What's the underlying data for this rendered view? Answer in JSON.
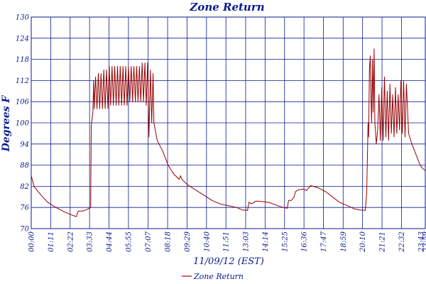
{
  "chart_data": {
    "type": "line",
    "title": "Zone Return",
    "xlabel": "11/09/12 (EST)",
    "ylabel": "Degrees F",
    "ylim": [
      70,
      130
    ],
    "yticks": [
      70,
      76,
      82,
      88,
      94,
      100,
      106,
      112,
      118,
      124,
      130
    ],
    "x_tick_labels": [
      "00:00",
      "01:11",
      "02:22",
      "03:33",
      "04:44",
      "05:55",
      "07:07",
      "08:18",
      "09:29",
      "10:40",
      "11:51",
      "13:03",
      "14:14",
      "15:25",
      "16:36",
      "17:47",
      "18:59",
      "20:10",
      "21:21",
      "22:32",
      "23:43",
      "23:59"
    ],
    "grid": true,
    "legend_position": "bottom-left",
    "series": [
      {
        "name": "Zone Return",
        "color": "#990000",
        "points": [
          [
            "00:00",
            85
          ],
          [
            "00:10",
            82
          ],
          [
            "00:30",
            80
          ],
          [
            "01:00",
            77.5
          ],
          [
            "01:30",
            76
          ],
          [
            "02:00",
            74.8
          ],
          [
            "02:30",
            73.8
          ],
          [
            "02:45",
            73.4
          ],
          [
            "02:50",
            74.8
          ],
          [
            "02:55",
            75
          ],
          [
            "03:10",
            75
          ],
          [
            "03:25",
            75.5
          ],
          [
            "03:37",
            76
          ],
          [
            "03:39",
            99
          ],
          [
            "03:45",
            103
          ],
          [
            "03:48",
            112
          ],
          [
            "03:50",
            104
          ],
          [
            "03:55",
            113
          ],
          [
            "04:00",
            104
          ],
          [
            "04:05",
            114
          ],
          [
            "04:10",
            104
          ],
          [
            "04:15",
            114
          ],
          [
            "04:20",
            104
          ],
          [
            "04:25",
            115
          ],
          [
            "04:30",
            104
          ],
          [
            "04:35",
            115
          ],
          [
            "04:40",
            104
          ],
          [
            "04:45",
            116
          ],
          [
            "04:50",
            105
          ],
          [
            "04:55",
            116
          ],
          [
            "05:00",
            105
          ],
          [
            "05:05",
            116
          ],
          [
            "05:10",
            105
          ],
          [
            "05:15",
            116
          ],
          [
            "05:20",
            105
          ],
          [
            "05:25",
            116
          ],
          [
            "05:30",
            105
          ],
          [
            "05:35",
            116
          ],
          [
            "05:40",
            105
          ],
          [
            "05:45",
            116
          ],
          [
            "05:50",
            105
          ],
          [
            "05:55",
            116
          ],
          [
            "06:00",
            106
          ],
          [
            "06:05",
            116
          ],
          [
            "06:10",
            106
          ],
          [
            "06:15",
            116
          ],
          [
            "06:20",
            106
          ],
          [
            "06:25",
            116
          ],
          [
            "06:30",
            106
          ],
          [
            "06:35",
            116
          ],
          [
            "06:40",
            106
          ],
          [
            "06:45",
            117
          ],
          [
            "06:50",
            106
          ],
          [
            "06:55",
            117
          ],
          [
            "07:00",
            105
          ],
          [
            "07:05",
            117
          ],
          [
            "07:10",
            96
          ],
          [
            "07:15",
            115
          ],
          [
            "07:20",
            100
          ],
          [
            "07:25",
            114
          ],
          [
            "07:28",
            100
          ],
          [
            "07:40",
            95
          ],
          [
            "08:00",
            92
          ],
          [
            "08:20",
            88
          ],
          [
            "08:40",
            85.5
          ],
          [
            "09:00",
            84
          ],
          [
            "09:05",
            85
          ],
          [
            "09:10",
            84
          ],
          [
            "09:30",
            82.5
          ],
          [
            "10:00",
            81
          ],
          [
            "10:30",
            79.5
          ],
          [
            "11:00",
            78
          ],
          [
            "11:30",
            77
          ],
          [
            "12:00",
            76.5
          ],
          [
            "12:30",
            76
          ],
          [
            "12:50",
            75.3
          ],
          [
            "13:10",
            75.2
          ],
          [
            "13:15",
            77.5
          ],
          [
            "13:25",
            77
          ],
          [
            "13:40",
            77.8
          ],
          [
            "14:00",
            77.7
          ],
          [
            "14:30",
            77.4
          ],
          [
            "15:00",
            76.5
          ],
          [
            "15:20",
            76
          ],
          [
            "15:35",
            75.8
          ],
          [
            "15:40",
            78
          ],
          [
            "15:50",
            78
          ],
          [
            "16:00",
            79
          ],
          [
            "16:05",
            80.5
          ],
          [
            "16:15",
            81
          ],
          [
            "16:35",
            81.2
          ],
          [
            "16:45",
            80.8
          ],
          [
            "17:00",
            82.2
          ],
          [
            "17:10",
            82
          ],
          [
            "17:30",
            81.5
          ],
          [
            "17:55",
            80.5
          ],
          [
            "18:20",
            79
          ],
          [
            "18:45",
            77.5
          ],
          [
            "19:15",
            76.5
          ],
          [
            "19:40",
            75.6
          ],
          [
            "20:00",
            75.3
          ],
          [
            "20:20",
            75.2
          ],
          [
            "20:25",
            80
          ],
          [
            "20:30",
            100
          ],
          [
            "20:32",
            96
          ],
          [
            "20:35",
            115
          ],
          [
            "20:38",
            119
          ],
          [
            "20:40",
            110
          ],
          [
            "20:43",
            100
          ],
          [
            "20:46",
            118
          ],
          [
            "20:49",
            103
          ],
          [
            "20:52",
            121
          ],
          [
            "20:55",
            100
          ],
          [
            "21:00",
            94
          ],
          [
            "21:05",
            98
          ],
          [
            "21:10",
            108
          ],
          [
            "21:15",
            95
          ],
          [
            "21:20",
            110
          ],
          [
            "21:25",
            95
          ],
          [
            "21:30",
            113
          ],
          [
            "21:35",
            96
          ],
          [
            "21:40",
            109
          ],
          [
            "21:45",
            95
          ],
          [
            "21:50",
            111
          ],
          [
            "21:55",
            97
          ],
          [
            "22:00",
            108
          ],
          [
            "22:05",
            96
          ],
          [
            "22:10",
            110
          ],
          [
            "22:15",
            97
          ],
          [
            "22:20",
            108
          ],
          [
            "22:25",
            98
          ],
          [
            "22:30",
            112
          ],
          [
            "22:35",
            97
          ],
          [
            "22:40",
            112
          ],
          [
            "22:45",
            96
          ],
          [
            "22:50",
            111
          ],
          [
            "22:58",
            97
          ],
          [
            "23:10",
            94
          ],
          [
            "23:25",
            91
          ],
          [
            "23:40",
            88
          ],
          [
            "23:50",
            87
          ],
          [
            "23:59",
            86.5
          ]
        ]
      }
    ]
  }
}
